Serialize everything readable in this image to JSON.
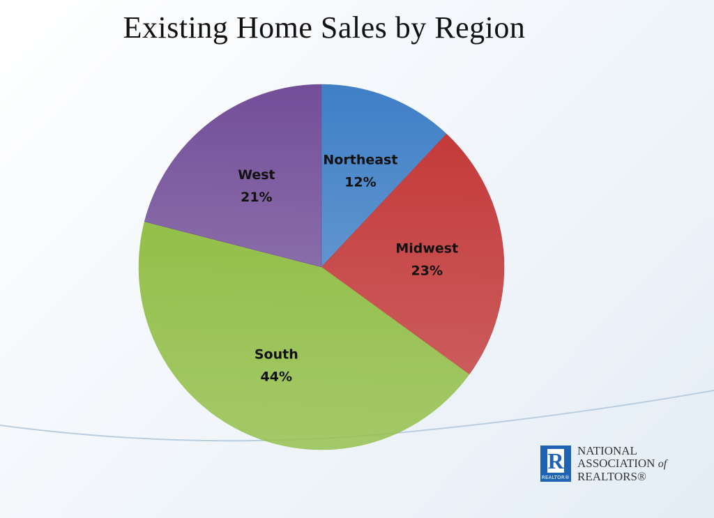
{
  "slide": {
    "title": "Existing Home Sales by Region"
  },
  "chart_data": {
    "type": "pie",
    "title": "Existing Home Sales by Region",
    "start_angle_deg": 0,
    "direction": "clockwise",
    "categories": [
      "Northeast",
      "Midwest",
      "South",
      "West"
    ],
    "values": [
      12,
      23,
      44,
      21
    ],
    "labels": [
      "12%",
      "23%",
      "44%",
      "21%"
    ],
    "colors": [
      "#3f7fc6",
      "#c43a3a",
      "#93bf49",
      "#724e98"
    ],
    "data_labels_inside": true,
    "legend": "none"
  },
  "logo": {
    "mark_letter": "R",
    "mark_caption": "REALTOR®",
    "line1": "NATIONAL",
    "line2": "ASSOCIATION",
    "line2_suffix": "of",
    "line3": "REALTORS®"
  }
}
